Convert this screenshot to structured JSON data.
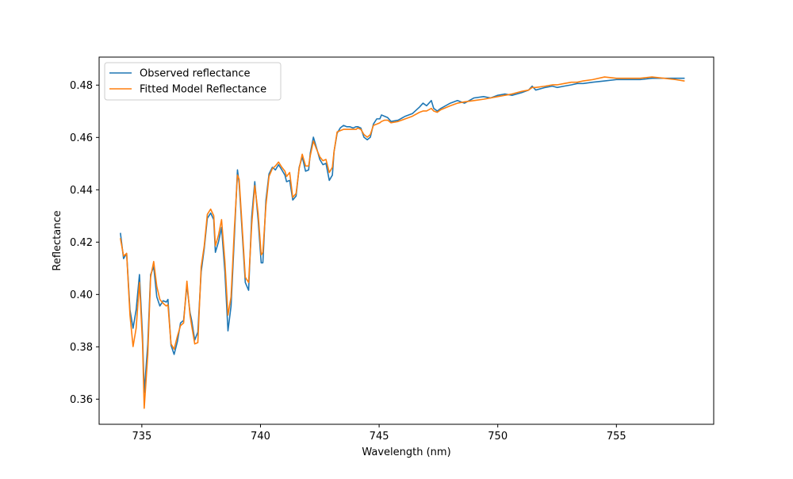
{
  "chart_data": {
    "type": "line",
    "title": "",
    "xlabel": "Wavelength (nm)",
    "ylabel": "Reflectance",
    "xlim": [
      733.2,
      759.1
    ],
    "ylim": [
      0.3504,
      0.4907
    ],
    "x_ticks": [
      735,
      740,
      745,
      750,
      755
    ],
    "y_ticks": [
      0.36,
      0.38,
      0.4,
      0.42,
      0.44,
      0.46,
      0.48
    ],
    "x_tick_labels": [
      "735",
      "740",
      "745",
      "750",
      "755"
    ],
    "y_tick_labels": [
      "0.36",
      "0.38",
      "0.40",
      "0.42",
      "0.44",
      "0.46",
      "0.48"
    ],
    "grid": false,
    "legend_position": "upper-left",
    "colors": {
      "observed": "#1f77b4",
      "fitted": "#ff7f0e"
    },
    "series": [
      {
        "name": "Observed reflectance",
        "color": "#1f77b4",
        "points": [
          [
            734.1,
            0.4233
          ],
          [
            734.23,
            0.4137
          ],
          [
            734.36,
            0.4157
          ],
          [
            734.5,
            0.3941
          ],
          [
            734.63,
            0.3871
          ],
          [
            734.76,
            0.3941
          ],
          [
            734.9,
            0.4076
          ],
          [
            735.03,
            0.3841
          ],
          [
            735.1,
            0.3625
          ],
          [
            735.25,
            0.381
          ],
          [
            735.37,
            0.4076
          ],
          [
            735.5,
            0.4106
          ],
          [
            735.63,
            0.3991
          ],
          [
            735.76,
            0.3956
          ],
          [
            735.9,
            0.3976
          ],
          [
            736.03,
            0.3971
          ],
          [
            736.1,
            0.3981
          ],
          [
            736.23,
            0.3806
          ],
          [
            736.36,
            0.3771
          ],
          [
            736.5,
            0.3821
          ],
          [
            736.63,
            0.3891
          ],
          [
            736.76,
            0.3901
          ],
          [
            736.9,
            0.4036
          ],
          [
            737.03,
            0.3931
          ],
          [
            737.1,
            0.3901
          ],
          [
            737.23,
            0.3826
          ],
          [
            737.36,
            0.3856
          ],
          [
            737.5,
            0.4086
          ],
          [
            737.63,
            0.4176
          ],
          [
            737.76,
            0.4291
          ],
          [
            737.9,
            0.4311
          ],
          [
            738.03,
            0.4286
          ],
          [
            738.1,
            0.4161
          ],
          [
            738.23,
            0.4201
          ],
          [
            738.36,
            0.4256
          ],
          [
            738.5,
            0.4086
          ],
          [
            738.63,
            0.3861
          ],
          [
            738.76,
            0.3956
          ],
          [
            738.9,
            0.4221
          ],
          [
            739.03,
            0.4476
          ],
          [
            739.1,
            0.4426
          ],
          [
            739.23,
            0.4236
          ],
          [
            739.36,
            0.4046
          ],
          [
            739.5,
            0.4016
          ],
          [
            739.63,
            0.4296
          ],
          [
            739.76,
            0.4431
          ],
          [
            739.9,
            0.4286
          ],
          [
            740.03,
            0.4121
          ],
          [
            740.1,
            0.4121
          ],
          [
            740.23,
            0.4361
          ],
          [
            740.36,
            0.4461
          ],
          [
            740.5,
            0.4486
          ],
          [
            740.63,
            0.4476
          ],
          [
            740.76,
            0.4496
          ],
          [
            740.9,
            0.4476
          ],
          [
            741.03,
            0.4456
          ],
          [
            741.1,
            0.4431
          ],
          [
            741.23,
            0.4436
          ],
          [
            741.36,
            0.4361
          ],
          [
            741.5,
            0.4376
          ],
          [
            741.63,
            0.4486
          ],
          [
            741.76,
            0.4526
          ],
          [
            741.9,
            0.4471
          ],
          [
            742.03,
            0.4476
          ],
          [
            742.1,
            0.4541
          ],
          [
            742.23,
            0.4601
          ],
          [
            742.36,
            0.4561
          ],
          [
            742.5,
            0.4516
          ],
          [
            742.63,
            0.4496
          ],
          [
            742.76,
            0.4501
          ],
          [
            742.9,
            0.4436
          ],
          [
            743.03,
            0.4456
          ],
          [
            743.1,
            0.4546
          ],
          [
            743.23,
            0.4616
          ],
          [
            743.36,
            0.4636
          ],
          [
            743.5,
            0.4646
          ],
          [
            743.63,
            0.4641
          ],
          [
            743.76,
            0.4641
          ],
          [
            743.9,
            0.4636
          ],
          [
            744.03,
            0.4641
          ],
          [
            744.1,
            0.4641
          ],
          [
            744.23,
            0.4636
          ],
          [
            744.36,
            0.4601
          ],
          [
            744.5,
            0.4591
          ],
          [
            744.63,
            0.4601
          ],
          [
            744.76,
            0.4651
          ],
          [
            744.9,
            0.4671
          ],
          [
            745.03,
            0.4671
          ],
          [
            745.1,
            0.4686
          ],
          [
            745.23,
            0.4681
          ],
          [
            745.36,
            0.4676
          ],
          [
            745.5,
            0.4661
          ],
          [
            745.8,
            0.4666
          ],
          [
            746.1,
            0.4681
          ],
          [
            746.4,
            0.4691
          ],
          [
            746.7,
            0.4716
          ],
          [
            746.85,
            0.4731
          ],
          [
            747.0,
            0.4721
          ],
          [
            747.2,
            0.4741
          ],
          [
            747.3,
            0.4711
          ],
          [
            747.45,
            0.4701
          ],
          [
            747.6,
            0.4711
          ],
          [
            748.0,
            0.4731
          ],
          [
            748.3,
            0.4741
          ],
          [
            748.6,
            0.4731
          ],
          [
            749.0,
            0.4751
          ],
          [
            749.4,
            0.4756
          ],
          [
            749.7,
            0.4751
          ],
          [
            750.0,
            0.4761
          ],
          [
            750.3,
            0.4766
          ],
          [
            750.6,
            0.4761
          ],
          [
            751.0,
            0.4771
          ],
          [
            751.3,
            0.4781
          ],
          [
            751.45,
            0.4796
          ],
          [
            751.6,
            0.4781
          ],
          [
            752.0,
            0.4791
          ],
          [
            752.3,
            0.4796
          ],
          [
            752.5,
            0.4791
          ],
          [
            752.8,
            0.4796
          ],
          [
            753.1,
            0.4801
          ],
          [
            753.35,
            0.4806
          ],
          [
            753.6,
            0.4806
          ],
          [
            754.0,
            0.4811
          ],
          [
            754.5,
            0.4816
          ],
          [
            755.0,
            0.4821
          ],
          [
            755.5,
            0.4821
          ],
          [
            756.0,
            0.4821
          ],
          [
            756.5,
            0.4826
          ],
          [
            757.0,
            0.4826
          ],
          [
            757.5,
            0.4826
          ],
          [
            757.85,
            0.4826
          ]
        ]
      },
      {
        "name": "Fitted Model Reflectance",
        "color": "#ff7f0e",
        "points": [
          [
            734.1,
            0.4213
          ],
          [
            734.23,
            0.4147
          ],
          [
            734.36,
            0.4157
          ],
          [
            734.5,
            0.3921
          ],
          [
            734.63,
            0.3801
          ],
          [
            734.76,
            0.3871
          ],
          [
            734.9,
            0.4046
          ],
          [
            735.03,
            0.3811
          ],
          [
            735.1,
            0.3565
          ],
          [
            735.25,
            0.377
          ],
          [
            735.37,
            0.4066
          ],
          [
            735.5,
            0.4126
          ],
          [
            735.63,
            0.4031
          ],
          [
            735.76,
            0.3981
          ],
          [
            735.9,
            0.3966
          ],
          [
            736.03,
            0.3956
          ],
          [
            736.1,
            0.3961
          ],
          [
            736.23,
            0.3811
          ],
          [
            736.36,
            0.3791
          ],
          [
            736.5,
            0.3841
          ],
          [
            736.63,
            0.3881
          ],
          [
            736.76,
            0.3891
          ],
          [
            736.9,
            0.4051
          ],
          [
            737.03,
            0.3921
          ],
          [
            737.1,
            0.3881
          ],
          [
            737.23,
            0.3811
          ],
          [
            737.36,
            0.3816
          ],
          [
            737.5,
            0.4106
          ],
          [
            737.63,
            0.4186
          ],
          [
            737.76,
            0.4306
          ],
          [
            737.9,
            0.4326
          ],
          [
            738.03,
            0.4301
          ],
          [
            738.1,
            0.4186
          ],
          [
            738.23,
            0.4226
          ],
          [
            738.36,
            0.4286
          ],
          [
            738.5,
            0.4126
          ],
          [
            738.63,
            0.3921
          ],
          [
            738.76,
            0.3991
          ],
          [
            738.9,
            0.4251
          ],
          [
            739.03,
            0.4456
          ],
          [
            739.1,
            0.4441
          ],
          [
            739.23,
            0.4256
          ],
          [
            739.36,
            0.4066
          ],
          [
            739.5,
            0.4046
          ],
          [
            739.63,
            0.4266
          ],
          [
            739.76,
            0.4416
          ],
          [
            739.9,
            0.4311
          ],
          [
            740.03,
            0.4151
          ],
          [
            740.1,
            0.4161
          ],
          [
            740.23,
            0.4341
          ],
          [
            740.36,
            0.4451
          ],
          [
            740.5,
            0.4481
          ],
          [
            740.63,
            0.4491
          ],
          [
            740.76,
            0.4506
          ],
          [
            740.9,
            0.4486
          ],
          [
            741.03,
            0.4471
          ],
          [
            741.1,
            0.4451
          ],
          [
            741.23,
            0.4466
          ],
          [
            741.36,
            0.4371
          ],
          [
            741.5,
            0.4386
          ],
          [
            741.63,
            0.4481
          ],
          [
            741.76,
            0.4536
          ],
          [
            741.9,
            0.4491
          ],
          [
            742.03,
            0.4491
          ],
          [
            742.1,
            0.4531
          ],
          [
            742.23,
            0.4586
          ],
          [
            742.36,
            0.4556
          ],
          [
            742.5,
            0.4526
          ],
          [
            742.63,
            0.4511
          ],
          [
            742.76,
            0.4516
          ],
          [
            742.9,
            0.4466
          ],
          [
            743.03,
            0.4486
          ],
          [
            743.1,
            0.4546
          ],
          [
            743.23,
            0.4621
          ],
          [
            743.36,
            0.4626
          ],
          [
            743.5,
            0.4631
          ],
          [
            743.63,
            0.4631
          ],
          [
            743.76,
            0.4631
          ],
          [
            743.9,
            0.4631
          ],
          [
            744.03,
            0.4631
          ],
          [
            744.1,
            0.4636
          ],
          [
            744.23,
            0.4631
          ],
          [
            744.36,
            0.4611
          ],
          [
            744.5,
            0.4601
          ],
          [
            744.63,
            0.4611
          ],
          [
            744.76,
            0.4646
          ],
          [
            744.9,
            0.4651
          ],
          [
            745.03,
            0.4656
          ],
          [
            745.1,
            0.4661
          ],
          [
            745.23,
            0.4666
          ],
          [
            745.36,
            0.4666
          ],
          [
            745.5,
            0.4656
          ],
          [
            745.8,
            0.4661
          ],
          [
            746.1,
            0.4671
          ],
          [
            746.4,
            0.4681
          ],
          [
            746.7,
            0.4696
          ],
          [
            746.85,
            0.4701
          ],
          [
            747.0,
            0.4701
          ],
          [
            747.2,
            0.4711
          ],
          [
            747.3,
            0.4701
          ],
          [
            747.45,
            0.4696
          ],
          [
            747.6,
            0.4706
          ],
          [
            748.0,
            0.4721
          ],
          [
            748.3,
            0.4731
          ],
          [
            748.6,
            0.4736
          ],
          [
            749.0,
            0.4741
          ],
          [
            749.4,
            0.4746
          ],
          [
            749.7,
            0.4751
          ],
          [
            750.0,
            0.4756
          ],
          [
            750.3,
            0.4761
          ],
          [
            750.6,
            0.4766
          ],
          [
            751.0,
            0.4776
          ],
          [
            751.3,
            0.4781
          ],
          [
            751.45,
            0.4791
          ],
          [
            751.6,
            0.4791
          ],
          [
            752.0,
            0.4796
          ],
          [
            752.3,
            0.4801
          ],
          [
            752.5,
            0.4801
          ],
          [
            752.8,
            0.4806
          ],
          [
            753.1,
            0.4811
          ],
          [
            753.35,
            0.4811
          ],
          [
            753.6,
            0.4816
          ],
          [
            754.0,
            0.4821
          ],
          [
            754.5,
            0.4831
          ],
          [
            755.0,
            0.4826
          ],
          [
            755.5,
            0.4826
          ],
          [
            756.0,
            0.4826
          ],
          [
            756.5,
            0.4831
          ],
          [
            757.0,
            0.4826
          ],
          [
            757.5,
            0.4821
          ],
          [
            757.85,
            0.4816
          ]
        ]
      }
    ]
  }
}
